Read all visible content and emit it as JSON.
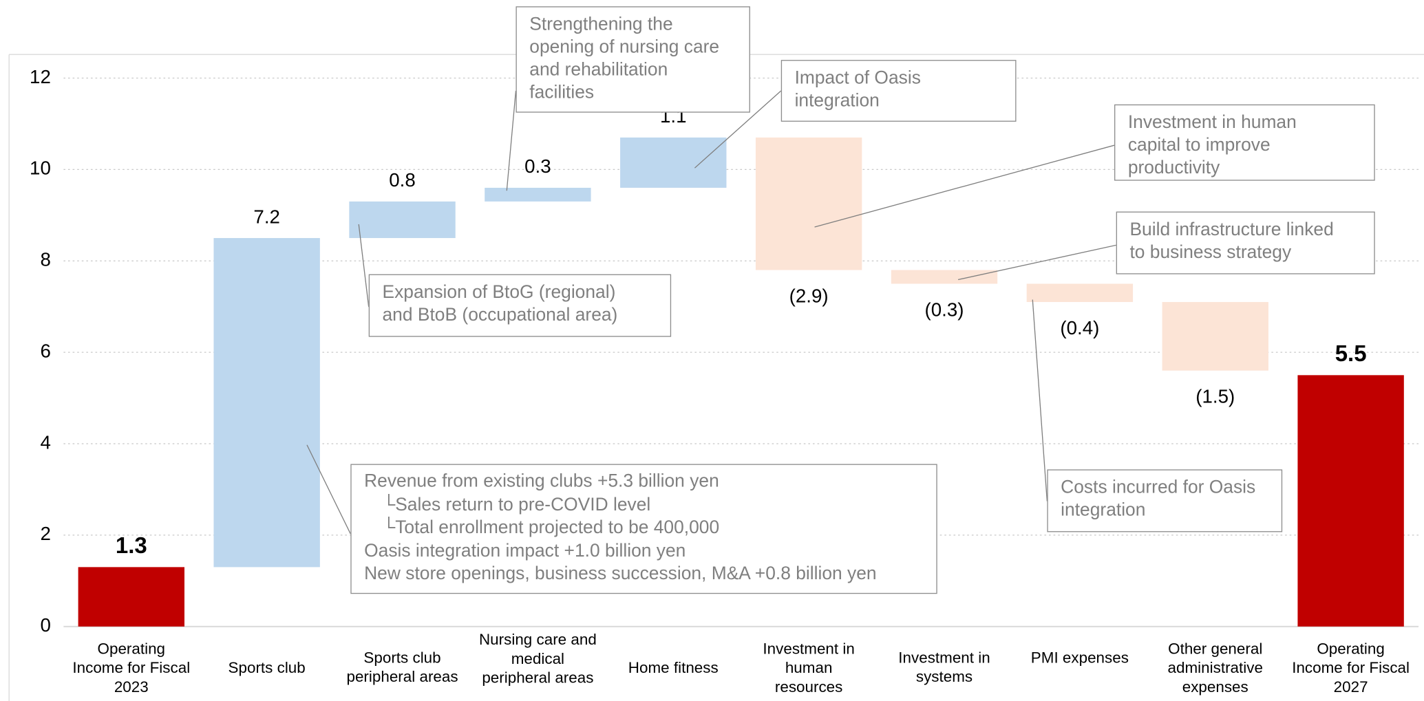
{
  "chart_data": {
    "type": "waterfall",
    "categories": [
      "Operating Income for Fiscal 2023",
      "Sports club",
      "Sports club peripheral areas",
      "Nursing care and medical peripheral areas",
      "Home fitness",
      "Investment in human resources",
      "Investment in systems",
      "PMI expenses",
      "Other general administrative expenses",
      "Operating Income for Fiscal 2027"
    ],
    "values": [
      1.3,
      7.2,
      0.8,
      0.3,
      1.1,
      -2.9,
      -0.3,
      -0.4,
      -1.5,
      5.5
    ],
    "value_labels": [
      "1.3",
      "7.2",
      "0.8",
      "0.3",
      "1.1",
      "(2.9)",
      "(0.3)",
      "(0.4)",
      "(1.5)",
      "5.5"
    ],
    "colors": {
      "total": "#c00000",
      "increase": "#bdd7ee",
      "decrease": "#fce4d6"
    },
    "ylim": [
      0,
      12
    ],
    "yticks": [
      0,
      2,
      4,
      6,
      8,
      10,
      12
    ],
    "grid": true,
    "annotations": [
      {
        "lines": [
          "Strengthening the",
          "opening of nursing care",
          "and rehabilitation",
          "facilities"
        ]
      },
      {
        "lines": [
          "Impact of Oasis",
          "integration"
        ]
      },
      {
        "lines": [
          "Investment in human",
          "capital to improve",
          "productivity"
        ]
      },
      {
        "lines": [
          "Build infrastructure linked",
          "to business strategy"
        ]
      },
      {
        "lines": [
          "Expansion of BtoG (regional)",
          "and BtoB (occupational area)"
        ]
      },
      {
        "lines": [
          "Revenue from existing clubs +5.3 billion yen",
          "　└Sales return to pre-COVID level",
          "　└Total enrollment projected to be 400,000",
          "Oasis integration impact +1.0 billion yen",
          "New store openings, business succession, M&A +0.8 billion yen"
        ]
      },
      {
        "lines": [
          "Costs incurred for Oasis",
          "integration"
        ]
      }
    ]
  }
}
